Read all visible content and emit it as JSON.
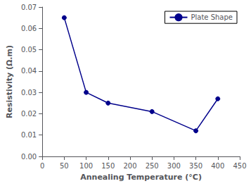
{
  "chart_data": {
    "type": "line",
    "x": [
      50,
      100,
      150,
      250,
      350,
      400
    ],
    "series": [
      {
        "name": "Plate Shape",
        "color": "#00008B",
        "marker": "circle",
        "values": [
          0.065,
          0.03,
          0.025,
          0.021,
          0.012,
          0.027
        ]
      }
    ],
    "xlabel": "Annealing Temperature (°C)",
    "ylabel": "Resistivity (Ω.m)",
    "xlim": [
      0,
      450
    ],
    "ylim": [
      0,
      0.07
    ],
    "xticks": [
      0,
      50,
      100,
      150,
      200,
      250,
      300,
      350,
      400,
      450
    ],
    "yticks": [
      {
        "value": 0,
        "label": "0.00"
      },
      {
        "value": 0.01,
        "label": "0.01"
      },
      {
        "value": 0.02,
        "label": "0.02"
      },
      {
        "value": 0.03,
        "label": "0.03"
      },
      {
        "value": 0.04,
        "label": "0.04"
      },
      {
        "value": 0.05,
        "label": "0.05"
      },
      {
        "value": 0.06,
        "label": "0.06"
      },
      {
        "value": 0.07,
        "label": "0.07"
      }
    ],
    "legend": "upper right",
    "grid": false
  }
}
